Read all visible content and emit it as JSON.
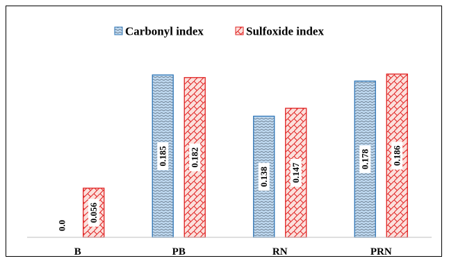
{
  "chart_data": {
    "type": "bar",
    "categories": [
      "B",
      "PB",
      "RN",
      "PRN"
    ],
    "series": [
      {
        "name": "Carbonyl index",
        "values": [
          0.0,
          0.185,
          0.138,
          0.178
        ],
        "labels": [
          "0.0",
          "0.185",
          "0.138",
          "0.178"
        ],
        "fill": "#bdd7ee",
        "stroke": "#2e75b6",
        "pattern": "wave"
      },
      {
        "name": "Sulfoxide index",
        "values": [
          0.056,
          0.182,
          0.147,
          0.186
        ],
        "labels": [
          "0.056",
          "0.182",
          "0.147",
          "0.186"
        ],
        "fill": "#fbe0dc",
        "stroke": "#e02020",
        "pattern": "brick"
      }
    ],
    "ylim": [
      0,
      0.2
    ],
    "grid": false,
    "legend_position": "top"
  }
}
